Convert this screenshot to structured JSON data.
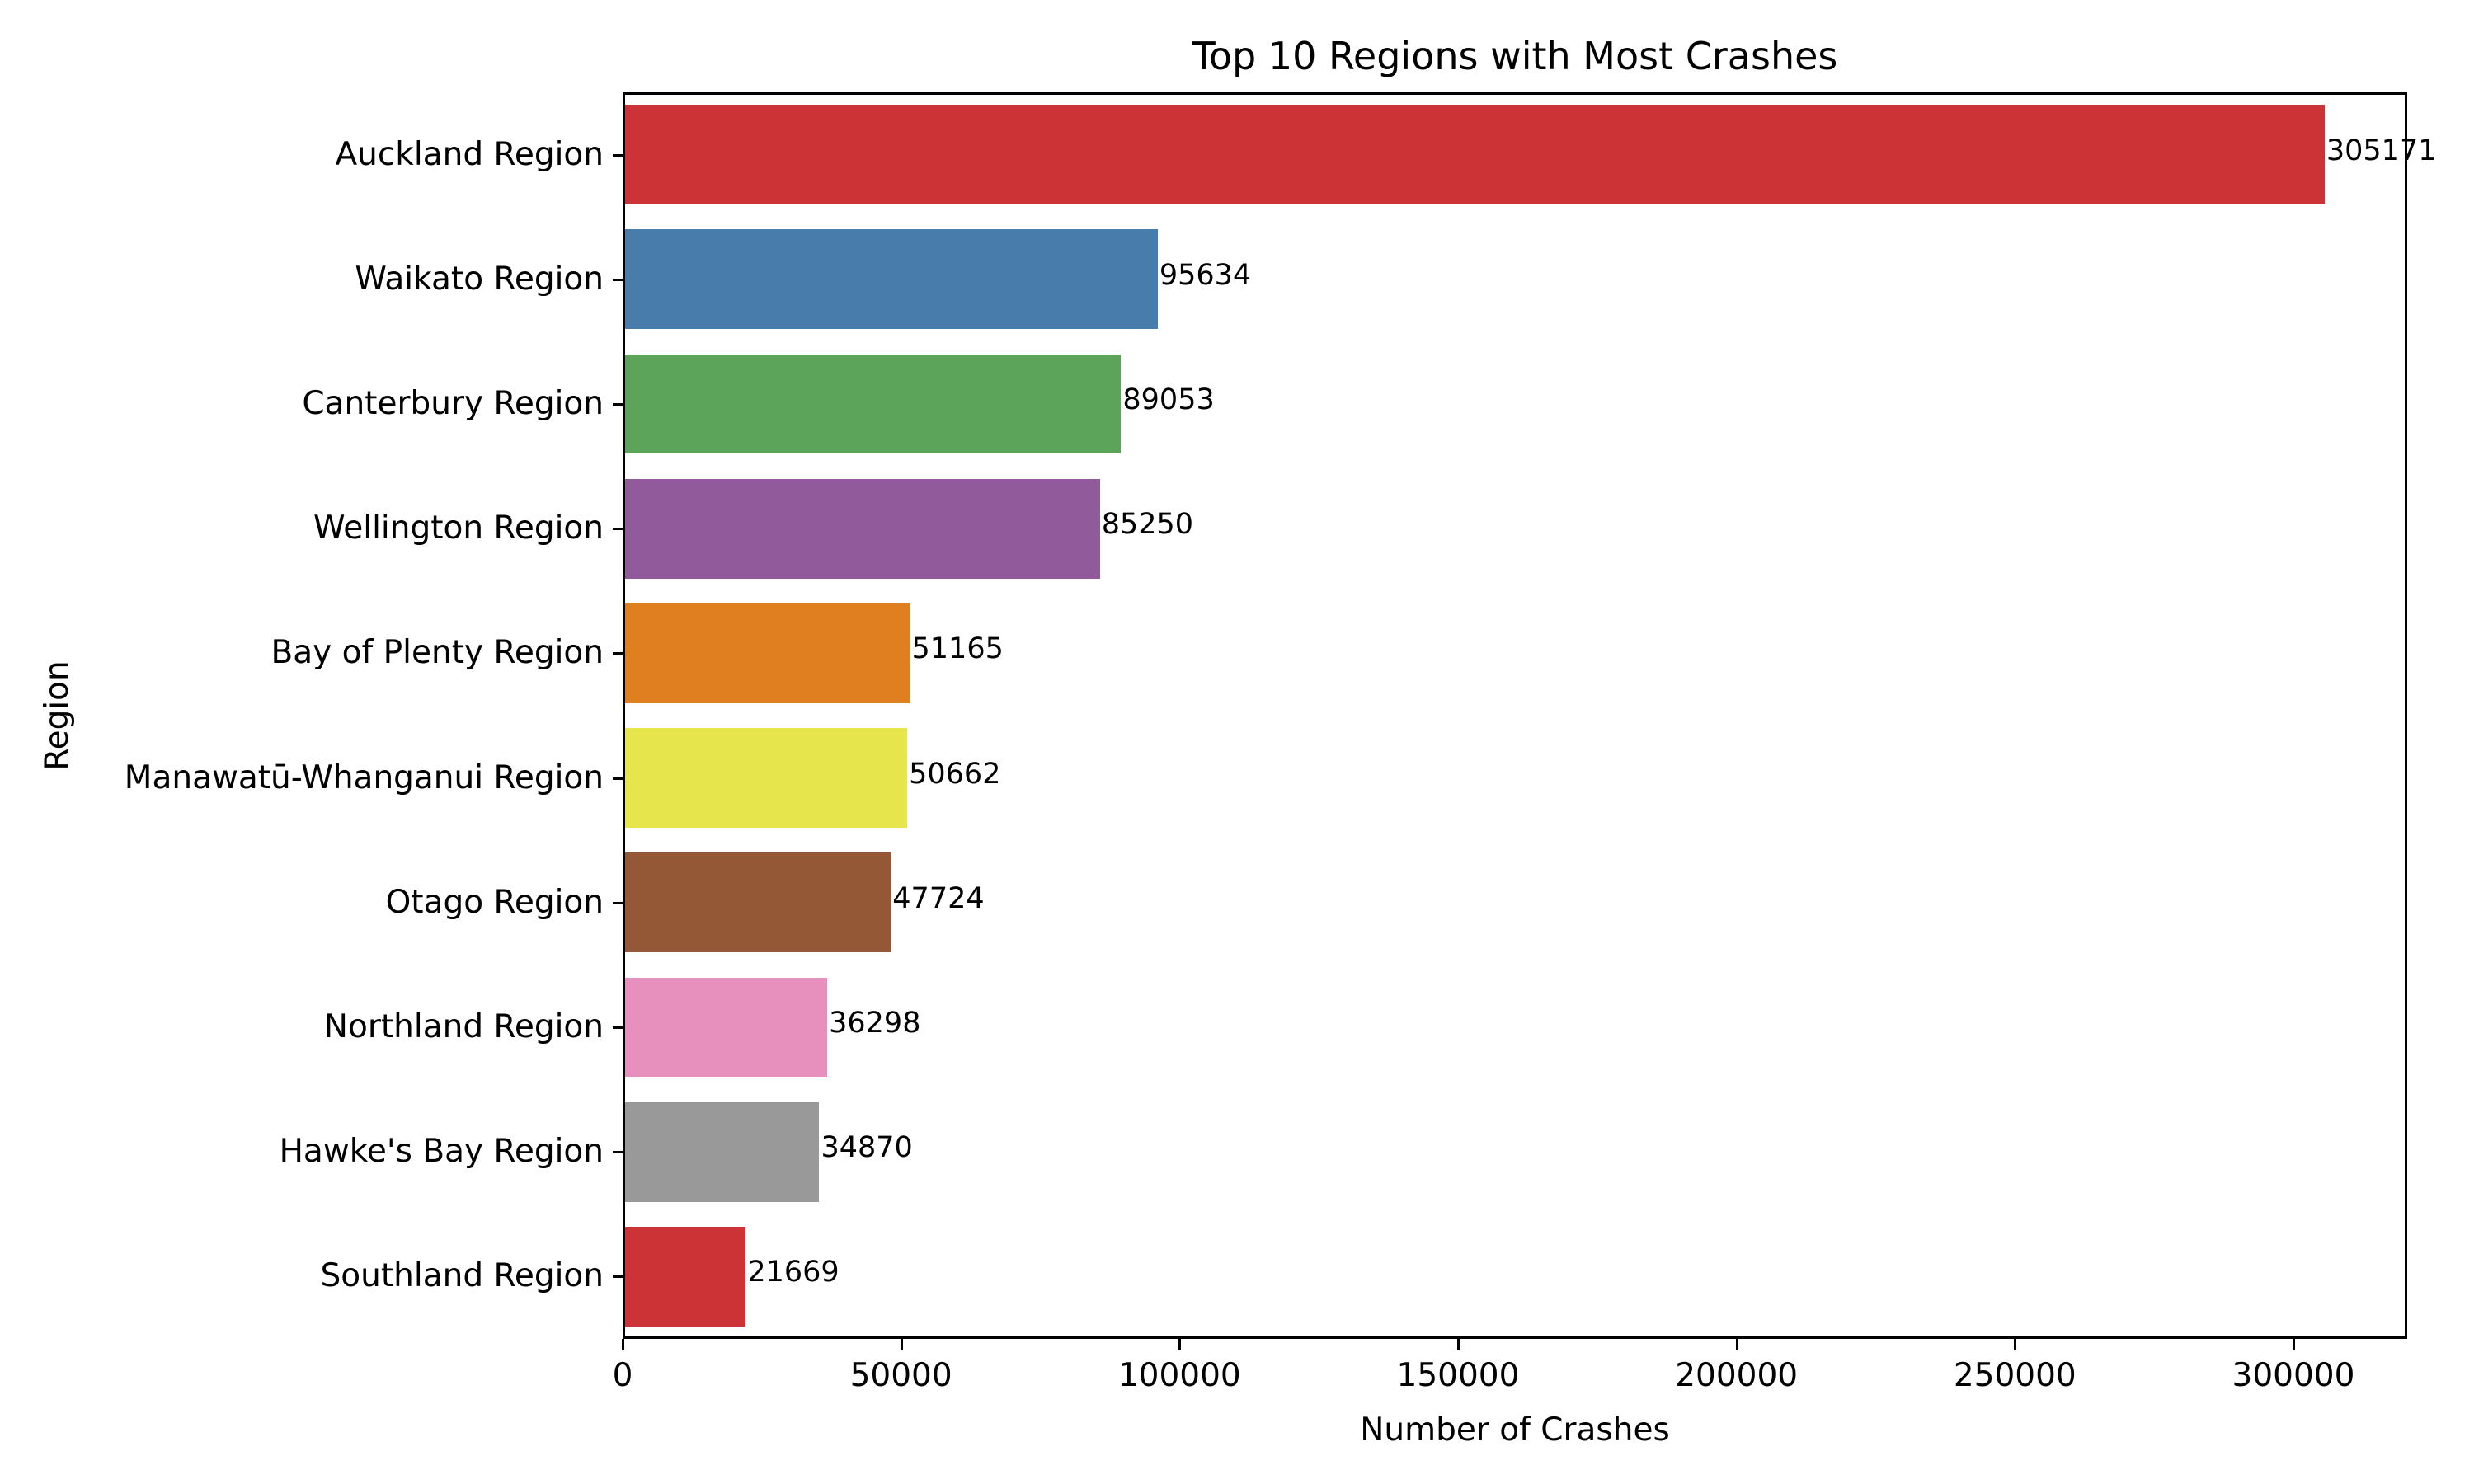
{
  "chart_data": {
    "type": "bar",
    "orientation": "horizontal",
    "title": "Top 10 Regions with Most Crashes",
    "xlabel": "Number of Crashes",
    "ylabel": "Region",
    "categories": [
      "Auckland Region",
      "Waikato Region",
      "Canterbury Region",
      "Wellington Region",
      "Bay of Plenty Region",
      "Manawatū-Whanganui Region",
      "Otago Region",
      "Northland Region",
      "Hawke's Bay Region",
      "Southland Region"
    ],
    "values": [
      305171,
      95634,
      89053,
      85250,
      51165,
      50662,
      47724,
      36298,
      34870,
      21669
    ],
    "value_labels": [
      "305171",
      "95634",
      "89053",
      "85250",
      "51165",
      "50662",
      "47724",
      "36298",
      "34870",
      "21669"
    ],
    "colors": [
      "#cc3337",
      "#477cab",
      "#5ba459",
      "#915a9b",
      "#e07f20",
      "#e6e54c",
      "#955837",
      "#e890bd",
      "#999999",
      "#cc3337"
    ],
    "xlim": [
      0,
      320440
    ],
    "xticks": [
      0,
      50000,
      100000,
      150000,
      200000,
      250000,
      300000
    ],
    "xtick_labels": [
      "0",
      "50000",
      "100000",
      "150000",
      "200000",
      "250000",
      "300000"
    ],
    "grid": false,
    "legend": null
  }
}
